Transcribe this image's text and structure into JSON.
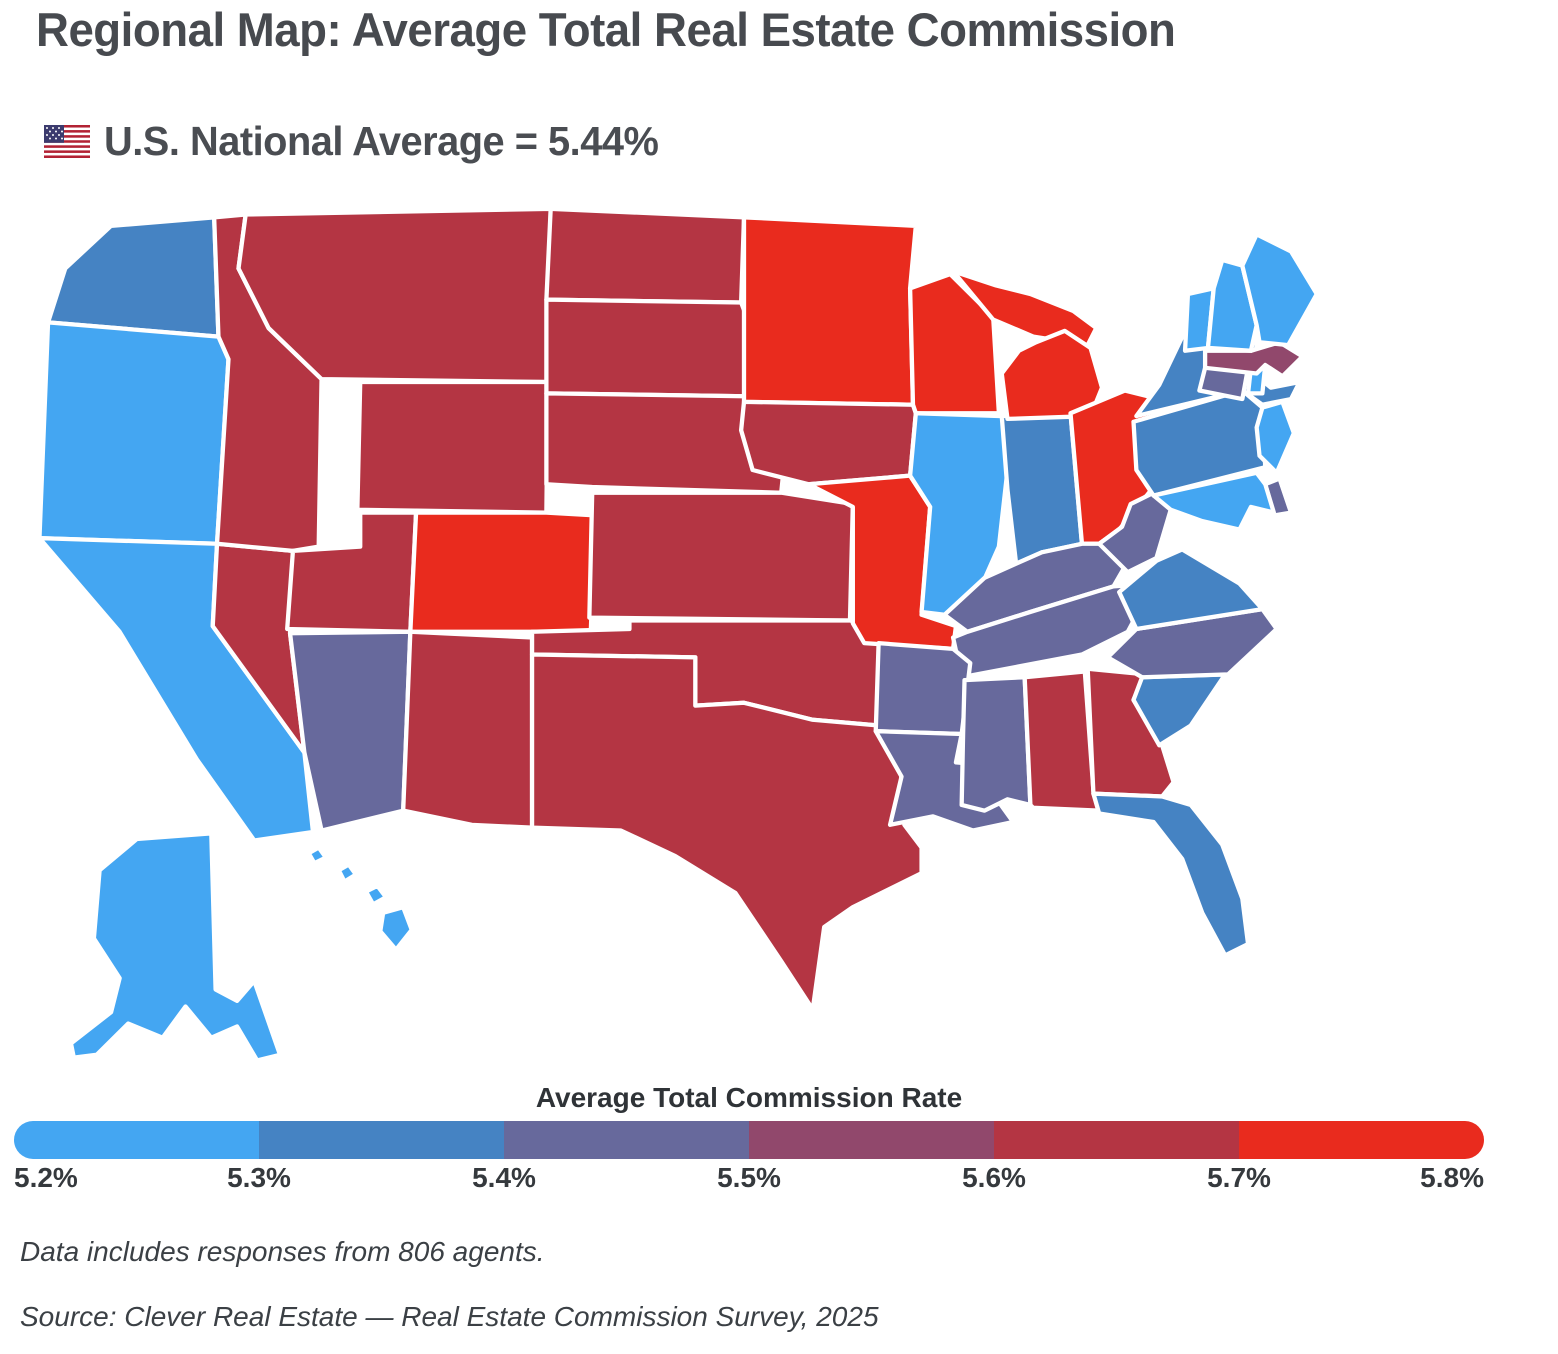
{
  "title": "Regional Map: Average Total Real Estate Commission",
  "subtitle_text": "U.S. National Average = 5.44%",
  "subtitle_flag_icon": "us-flag",
  "notes": {
    "agents": "Data includes responses from 806 agents.",
    "source": "Source: Clever Real Estate — Real Estate Commission Survey, 2025"
  },
  "chart_data": {
    "type": "choropleth",
    "title": "Regional Map: Average Total Real Estate Commission",
    "national_average": "5.44%",
    "unit": "percent commission",
    "legend_title": "Average Total Commission Rate",
    "scale_ticks": [
      "5.2%",
      "5.3%",
      "5.4%",
      "5.5%",
      "5.6%",
      "5.7%",
      "5.8%"
    ],
    "legend_position": "bottom",
    "bins": [
      {
        "range": "5.2%–5.3%",
        "color": "#44a6f2"
      },
      {
        "range": "5.3%–5.4%",
        "color": "#4583c3"
      },
      {
        "range": "5.4%–5.5%",
        "color": "#67699c"
      },
      {
        "range": "5.5%–5.6%",
        "color": "#91486c"
      },
      {
        "range": "5.6%–5.7%",
        "color": "#b43543"
      },
      {
        "range": "5.7%–5.8%",
        "color": "#e92b1e"
      }
    ],
    "states": [
      {
        "abbr": "WA",
        "name": "Washington",
        "bin": "5.3%–5.4%"
      },
      {
        "abbr": "OR",
        "name": "Oregon",
        "bin": "5.2%–5.3%"
      },
      {
        "abbr": "CA",
        "name": "California",
        "bin": "5.2%–5.3%"
      },
      {
        "abbr": "NV",
        "name": "Nevada",
        "bin": "5.6%–5.7%"
      },
      {
        "abbr": "ID",
        "name": "Idaho",
        "bin": "5.6%–5.7%"
      },
      {
        "abbr": "MT",
        "name": "Montana",
        "bin": "5.6%–5.7%"
      },
      {
        "abbr": "WY",
        "name": "Wyoming",
        "bin": "5.6%–5.7%"
      },
      {
        "abbr": "UT",
        "name": "Utah",
        "bin": "5.6%–5.7%"
      },
      {
        "abbr": "CO",
        "name": "Colorado",
        "bin": "5.7%–5.8%"
      },
      {
        "abbr": "AZ",
        "name": "Arizona",
        "bin": "5.4%–5.5%"
      },
      {
        "abbr": "NM",
        "name": "New Mexico",
        "bin": "5.6%–5.7%"
      },
      {
        "abbr": "ND",
        "name": "North Dakota",
        "bin": "5.6%–5.7%"
      },
      {
        "abbr": "SD",
        "name": "South Dakota",
        "bin": "5.6%–5.7%"
      },
      {
        "abbr": "NE",
        "name": "Nebraska",
        "bin": "5.6%–5.7%"
      },
      {
        "abbr": "KS",
        "name": "Kansas",
        "bin": "5.6%–5.7%"
      },
      {
        "abbr": "OK",
        "name": "Oklahoma",
        "bin": "5.6%–5.7%"
      },
      {
        "abbr": "TX",
        "name": "Texas",
        "bin": "5.6%–5.7%"
      },
      {
        "abbr": "MN",
        "name": "Minnesota",
        "bin": "5.7%–5.8%"
      },
      {
        "abbr": "IA",
        "name": "Iowa",
        "bin": "5.6%–5.7%"
      },
      {
        "abbr": "MO",
        "name": "Missouri",
        "bin": "5.7%–5.8%"
      },
      {
        "abbr": "WI",
        "name": "Wisconsin",
        "bin": "5.7%–5.8%"
      },
      {
        "abbr": "IL",
        "name": "Illinois",
        "bin": "5.2%–5.3%"
      },
      {
        "abbr": "IN",
        "name": "Indiana",
        "bin": "5.3%–5.4%"
      },
      {
        "abbr": "MI",
        "name": "Michigan",
        "bin": "5.7%–5.8%"
      },
      {
        "abbr": "OH",
        "name": "Ohio",
        "bin": "5.7%–5.8%"
      },
      {
        "abbr": "KY",
        "name": "Kentucky",
        "bin": "5.4%–5.5%"
      },
      {
        "abbr": "TN",
        "name": "Tennessee",
        "bin": "5.4%–5.5%"
      },
      {
        "abbr": "AR",
        "name": "Arkansas",
        "bin": "5.4%–5.5%"
      },
      {
        "abbr": "LA",
        "name": "Louisiana",
        "bin": "5.4%–5.5%"
      },
      {
        "abbr": "MS",
        "name": "Mississippi",
        "bin": "5.4%–5.5%"
      },
      {
        "abbr": "AL",
        "name": "Alabama",
        "bin": "5.6%–5.7%"
      },
      {
        "abbr": "GA",
        "name": "Georgia",
        "bin": "5.6%–5.7%"
      },
      {
        "abbr": "FL",
        "name": "Florida",
        "bin": "5.3%–5.4%"
      },
      {
        "abbr": "SC",
        "name": "South Carolina",
        "bin": "5.3%–5.4%"
      },
      {
        "abbr": "NC",
        "name": "North Carolina",
        "bin": "5.4%–5.5%"
      },
      {
        "abbr": "VA",
        "name": "Virginia",
        "bin": "5.3%–5.4%"
      },
      {
        "abbr": "WV",
        "name": "West Virginia",
        "bin": "5.4%–5.5%"
      },
      {
        "abbr": "PA",
        "name": "Pennsylvania",
        "bin": "5.3%–5.4%"
      },
      {
        "abbr": "NY",
        "name": "New York",
        "bin": "5.3%–5.4%"
      },
      {
        "abbr": "NJ",
        "name": "New Jersey",
        "bin": "5.2%–5.3%"
      },
      {
        "abbr": "DE",
        "name": "Delaware",
        "bin": "5.4%–5.5%"
      },
      {
        "abbr": "MD",
        "name": "Maryland",
        "bin": "5.2%–5.3%"
      },
      {
        "abbr": "CT",
        "name": "Connecticut",
        "bin": "5.4%–5.5%"
      },
      {
        "abbr": "RI",
        "name": "Rhode Island",
        "bin": "5.2%–5.3%"
      },
      {
        "abbr": "MA",
        "name": "Massachusetts",
        "bin": "5.5%–5.6%"
      },
      {
        "abbr": "VT",
        "name": "Vermont",
        "bin": "5.2%–5.3%"
      },
      {
        "abbr": "NH",
        "name": "New Hampshire",
        "bin": "5.2%–5.3%"
      },
      {
        "abbr": "ME",
        "name": "Maine",
        "bin": "5.2%–5.3%"
      },
      {
        "abbr": "AK",
        "name": "Alaska",
        "bin": "5.2%–5.3%"
      },
      {
        "abbr": "HI",
        "name": "Hawaii",
        "bin": "5.2%–5.3%"
      }
    ]
  }
}
